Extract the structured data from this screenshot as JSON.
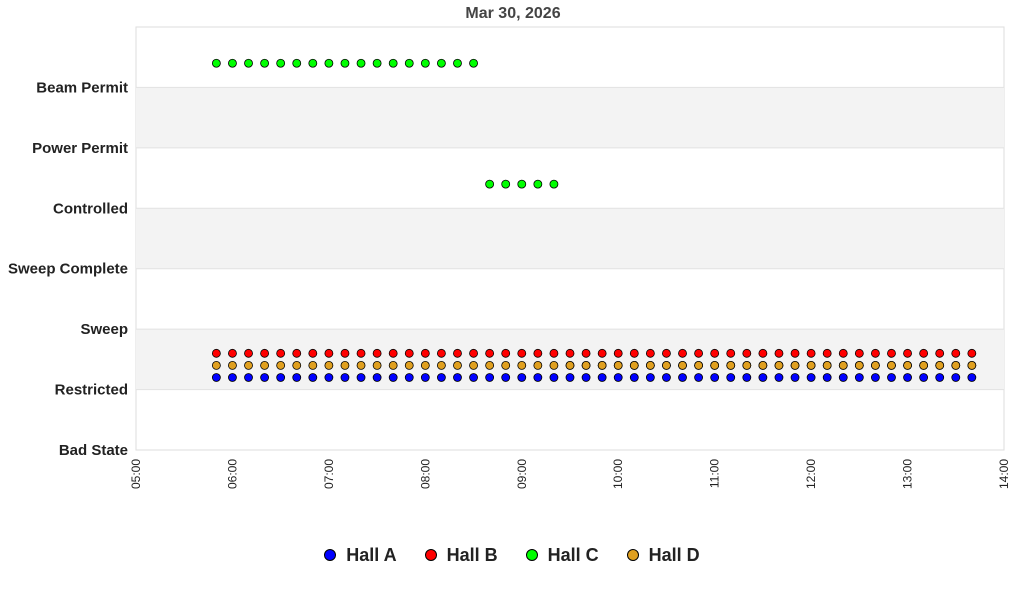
{
  "chart_data": {
    "type": "scatter",
    "title": "Mar 30, 2026",
    "xlabel": "",
    "ylabel": "",
    "x_ticks": [
      "05:00",
      "06:00",
      "07:00",
      "08:00",
      "09:00",
      "10:00",
      "11:00",
      "12:00",
      "13:00",
      "14:00"
    ],
    "xlim": [
      "05:00",
      "14:00"
    ],
    "y_categories": [
      "Bad State",
      "Restricted",
      "Sweep",
      "Sweep Complete",
      "Controlled",
      "Power Permit",
      "Beam Permit"
    ],
    "ylim": [
      0,
      7
    ],
    "grid": true,
    "legend_position": "bottom",
    "series": [
      {
        "name": "Hall A",
        "color": "#0000ff",
        "y": 1.2,
        "x_start": "05:50",
        "x_end": "13:40",
        "interval_min": 10
      },
      {
        "name": "Hall B",
        "color": "#ff0000",
        "y": 1.6,
        "x_start": "05:50",
        "x_end": "13:40",
        "interval_min": 10
      },
      {
        "name": "Hall C",
        "color": "#00ff00",
        "segments": [
          {
            "y": 6.4,
            "x_start": "05:50",
            "x_end": "08:30",
            "interval_min": 10
          },
          {
            "y": 4.4,
            "x_start": "08:40",
            "x_end": "09:20",
            "interval_min": 10
          },
          {
            "y": 1.4,
            "x_start": "09:30",
            "x_end": "13:40",
            "interval_min": 10
          }
        ]
      },
      {
        "name": "Hall D",
        "color": "#e0a020",
        "y": 1.4,
        "x_start": "05:50",
        "x_end": "13:40",
        "interval_min": 10
      }
    ]
  }
}
